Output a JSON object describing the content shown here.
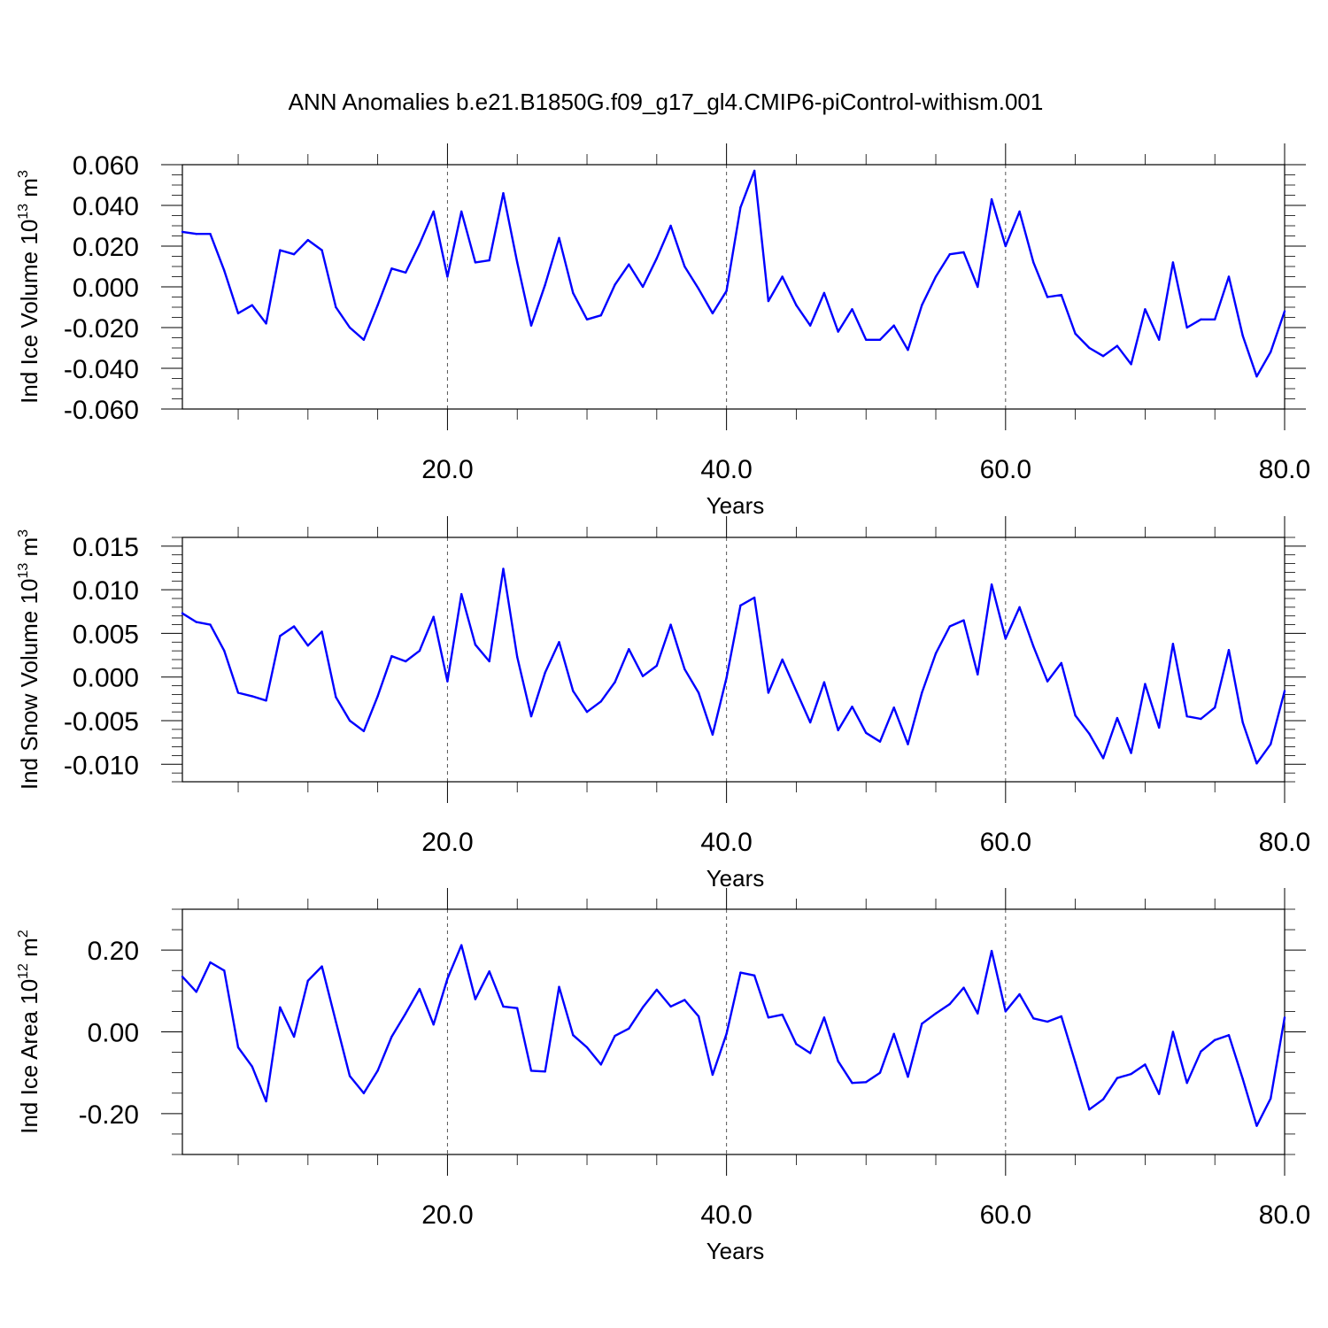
{
  "title": "ANN Anomalies b.e21.B1850G.f09_g17_gl4.CMIP6-piControl-withism.001",
  "colors": {
    "series": "#0000ff",
    "axis": "#000000",
    "reference": "#555555"
  },
  "chart_data": [
    {
      "type": "line",
      "ylabel_main": "Ind Ice Volume 10",
      "ylabel_exp": "13",
      "ylabel_unit": "m",
      "ylabel_unit_exp": "3",
      "xlabel": "Years",
      "xlim": [
        1,
        80
      ],
      "ylim": [
        -0.06,
        0.06
      ],
      "xticks": [
        20,
        40,
        60,
        80
      ],
      "xtick_labels": [
        "20.0",
        "40.0",
        "60.0",
        "80.0"
      ],
      "yticks": [
        -0.06,
        -0.04,
        -0.02,
        0.0,
        0.02,
        0.04,
        0.06
      ],
      "ytick_labels": [
        "-0.060",
        "-0.040",
        "-0.020",
        "0.000",
        "0.020",
        "0.040",
        "0.060"
      ],
      "minor_step": 0.005,
      "reference_x": [
        20,
        40,
        60
      ],
      "x": [
        1,
        2,
        3,
        4,
        5,
        6,
        7,
        8,
        9,
        10,
        11,
        12,
        13,
        14,
        15,
        16,
        17,
        18,
        19,
        20,
        21,
        22,
        23,
        24,
        25,
        26,
        27,
        28,
        29,
        30,
        31,
        32,
        33,
        34,
        35,
        36,
        37,
        38,
        39,
        40,
        41,
        42,
        43,
        44,
        45,
        46,
        47,
        48,
        49,
        50,
        51,
        52,
        53,
        54,
        55,
        56,
        57,
        58,
        59,
        60,
        61,
        62,
        63,
        64,
        65,
        66,
        67,
        68,
        69,
        70,
        71,
        72,
        73,
        74,
        75,
        76,
        77,
        78,
        79,
        80
      ],
      "values": [
        0.027,
        0.026,
        0.026,
        0.008,
        -0.013,
        -0.009,
        -0.018,
        0.018,
        0.016,
        0.023,
        0.018,
        -0.01,
        -0.02,
        -0.026,
        -0.009,
        0.009,
        0.007,
        0.021,
        0.037,
        0.005,
        0.037,
        0.012,
        0.013,
        0.046,
        0.012,
        -0.019,
        0.001,
        0.024,
        -0.003,
        -0.016,
        -0.014,
        0.001,
        0.011,
        0.0,
        0.014,
        0.03,
        0.01,
        -0.001,
        -0.013,
        -0.002,
        0.039,
        0.057,
        -0.007,
        0.005,
        -0.009,
        -0.019,
        -0.003,
        -0.022,
        -0.011,
        -0.026,
        -0.026,
        -0.019,
        -0.031,
        -0.009,
        0.005,
        0.016,
        0.017,
        0.0,
        0.043,
        0.02,
        0.037,
        0.012,
        -0.005,
        -0.004,
        -0.023,
        -0.03,
        -0.034,
        -0.029,
        -0.038,
        -0.011,
        -0.026,
        0.012,
        -0.02,
        -0.016,
        -0.016,
        0.005,
        -0.024,
        -0.044,
        -0.032,
        -0.012
      ]
    },
    {
      "type": "line",
      "ylabel_main": "Ind Snow Volume 10",
      "ylabel_exp": "13",
      "ylabel_unit": "m",
      "ylabel_unit_exp": "3",
      "xlabel": "Years",
      "xlim": [
        1,
        80
      ],
      "ylim": [
        -0.012,
        0.016
      ],
      "xticks": [
        20,
        40,
        60,
        80
      ],
      "xtick_labels": [
        "20.0",
        "40.0",
        "60.0",
        "80.0"
      ],
      "yticks": [
        -0.01,
        -0.005,
        0.0,
        0.005,
        0.01,
        0.015
      ],
      "ytick_labels": [
        "-0.010",
        "-0.005",
        "0.000",
        "0.005",
        "0.010",
        "0.015"
      ],
      "minor_step": 0.001,
      "reference_x": [
        20,
        40,
        60
      ],
      "x": [
        1,
        2,
        3,
        4,
        5,
        6,
        7,
        8,
        9,
        10,
        11,
        12,
        13,
        14,
        15,
        16,
        17,
        18,
        19,
        20,
        21,
        22,
        23,
        24,
        25,
        26,
        27,
        28,
        29,
        30,
        31,
        32,
        33,
        34,
        35,
        36,
        37,
        38,
        39,
        40,
        41,
        42,
        43,
        44,
        45,
        46,
        47,
        48,
        49,
        50,
        51,
        52,
        53,
        54,
        55,
        56,
        57,
        58,
        59,
        60,
        61,
        62,
        63,
        64,
        65,
        66,
        67,
        68,
        69,
        70,
        71,
        72,
        73,
        74,
        75,
        76,
        77,
        78,
        79,
        80
      ],
      "values": [
        0.0073,
        0.0063,
        0.006,
        0.003,
        -0.0018,
        -0.0022,
        -0.0027,
        0.0047,
        0.0058,
        0.0036,
        0.0052,
        -0.0023,
        -0.005,
        -0.0062,
        -0.0022,
        0.0024,
        0.0018,
        0.003,
        0.0069,
        -0.0005,
        0.0095,
        0.0037,
        0.0018,
        0.0124,
        0.0023,
        -0.0045,
        0.0005,
        0.004,
        -0.0016,
        -0.004,
        -0.0028,
        -0.0006,
        0.0032,
        0.0001,
        0.0013,
        0.006,
        0.0009,
        -0.0018,
        -0.0066,
        -0.0001,
        0.0082,
        0.0091,
        -0.0018,
        0.002,
        -0.0016,
        -0.0052,
        -0.0006,
        -0.0061,
        -0.0034,
        -0.0064,
        -0.0074,
        -0.0035,
        -0.0077,
        -0.0018,
        0.0027,
        0.0058,
        0.0065,
        0.0003,
        0.0106,
        0.0044,
        0.008,
        0.0035,
        -0.0005,
        0.0016,
        -0.0044,
        -0.0065,
        -0.0093,
        -0.0047,
        -0.0087,
        -0.0008,
        -0.0058,
        0.0038,
        -0.0045,
        -0.0048,
        -0.0035,
        0.0031,
        -0.0052,
        -0.0099,
        -0.0077,
        -0.0016
      ]
    },
    {
      "type": "line",
      "ylabel_main": "Ind Ice Area 10",
      "ylabel_exp": "12",
      "ylabel_unit": "m",
      "ylabel_unit_exp": "2",
      "xlabel": "Years",
      "xlim": [
        1,
        80
      ],
      "ylim": [
        -0.3,
        0.3
      ],
      "xticks": [
        20,
        40,
        60,
        80
      ],
      "xtick_labels": [
        "20.0",
        "40.0",
        "60.0",
        "80.0"
      ],
      "yticks": [
        -0.2,
        0.0,
        0.2
      ],
      "ytick_labels": [
        "-0.20",
        "0.00",
        "0.20"
      ],
      "minor_step": 0.05,
      "reference_x": [
        20,
        40,
        60
      ],
      "x": [
        1,
        2,
        3,
        4,
        5,
        6,
        7,
        8,
        9,
        10,
        11,
        12,
        13,
        14,
        15,
        16,
        17,
        18,
        19,
        20,
        21,
        22,
        23,
        24,
        25,
        26,
        27,
        28,
        29,
        30,
        31,
        32,
        33,
        34,
        35,
        36,
        37,
        38,
        39,
        40,
        41,
        42,
        43,
        44,
        45,
        46,
        47,
        48,
        49,
        50,
        51,
        52,
        53,
        54,
        55,
        56,
        57,
        58,
        59,
        60,
        61,
        62,
        63,
        64,
        65,
        66,
        67,
        68,
        69,
        70,
        71,
        72,
        73,
        74,
        75,
        76,
        77,
        78,
        79,
        80
      ],
      "values": [
        0.135,
        0.098,
        0.17,
        0.15,
        -0.038,
        -0.085,
        -0.17,
        0.06,
        -0.012,
        0.125,
        0.16,
        0.025,
        -0.108,
        -0.15,
        -0.095,
        -0.012,
        0.045,
        0.105,
        0.018,
        0.13,
        0.212,
        0.08,
        0.148,
        0.062,
        0.058,
        -0.095,
        -0.097,
        0.11,
        -0.008,
        -0.038,
        -0.08,
        -0.01,
        0.008,
        0.06,
        0.103,
        0.062,
        0.078,
        0.038,
        -0.105,
        -0.005,
        0.145,
        0.138,
        0.035,
        0.042,
        -0.03,
        -0.052,
        0.035,
        -0.072,
        -0.125,
        -0.123,
        -0.1,
        -0.005,
        -0.11,
        0.02,
        0.045,
        0.068,
        0.108,
        0.045,
        0.198,
        0.05,
        0.092,
        0.033,
        0.025,
        0.038,
        -0.075,
        -0.19,
        -0.165,
        -0.113,
        -0.103,
        -0.08,
        -0.152,
        0.0,
        -0.125,
        -0.048,
        -0.02,
        -0.008,
        -0.115,
        -0.23,
        -0.163,
        0.035
      ]
    }
  ]
}
